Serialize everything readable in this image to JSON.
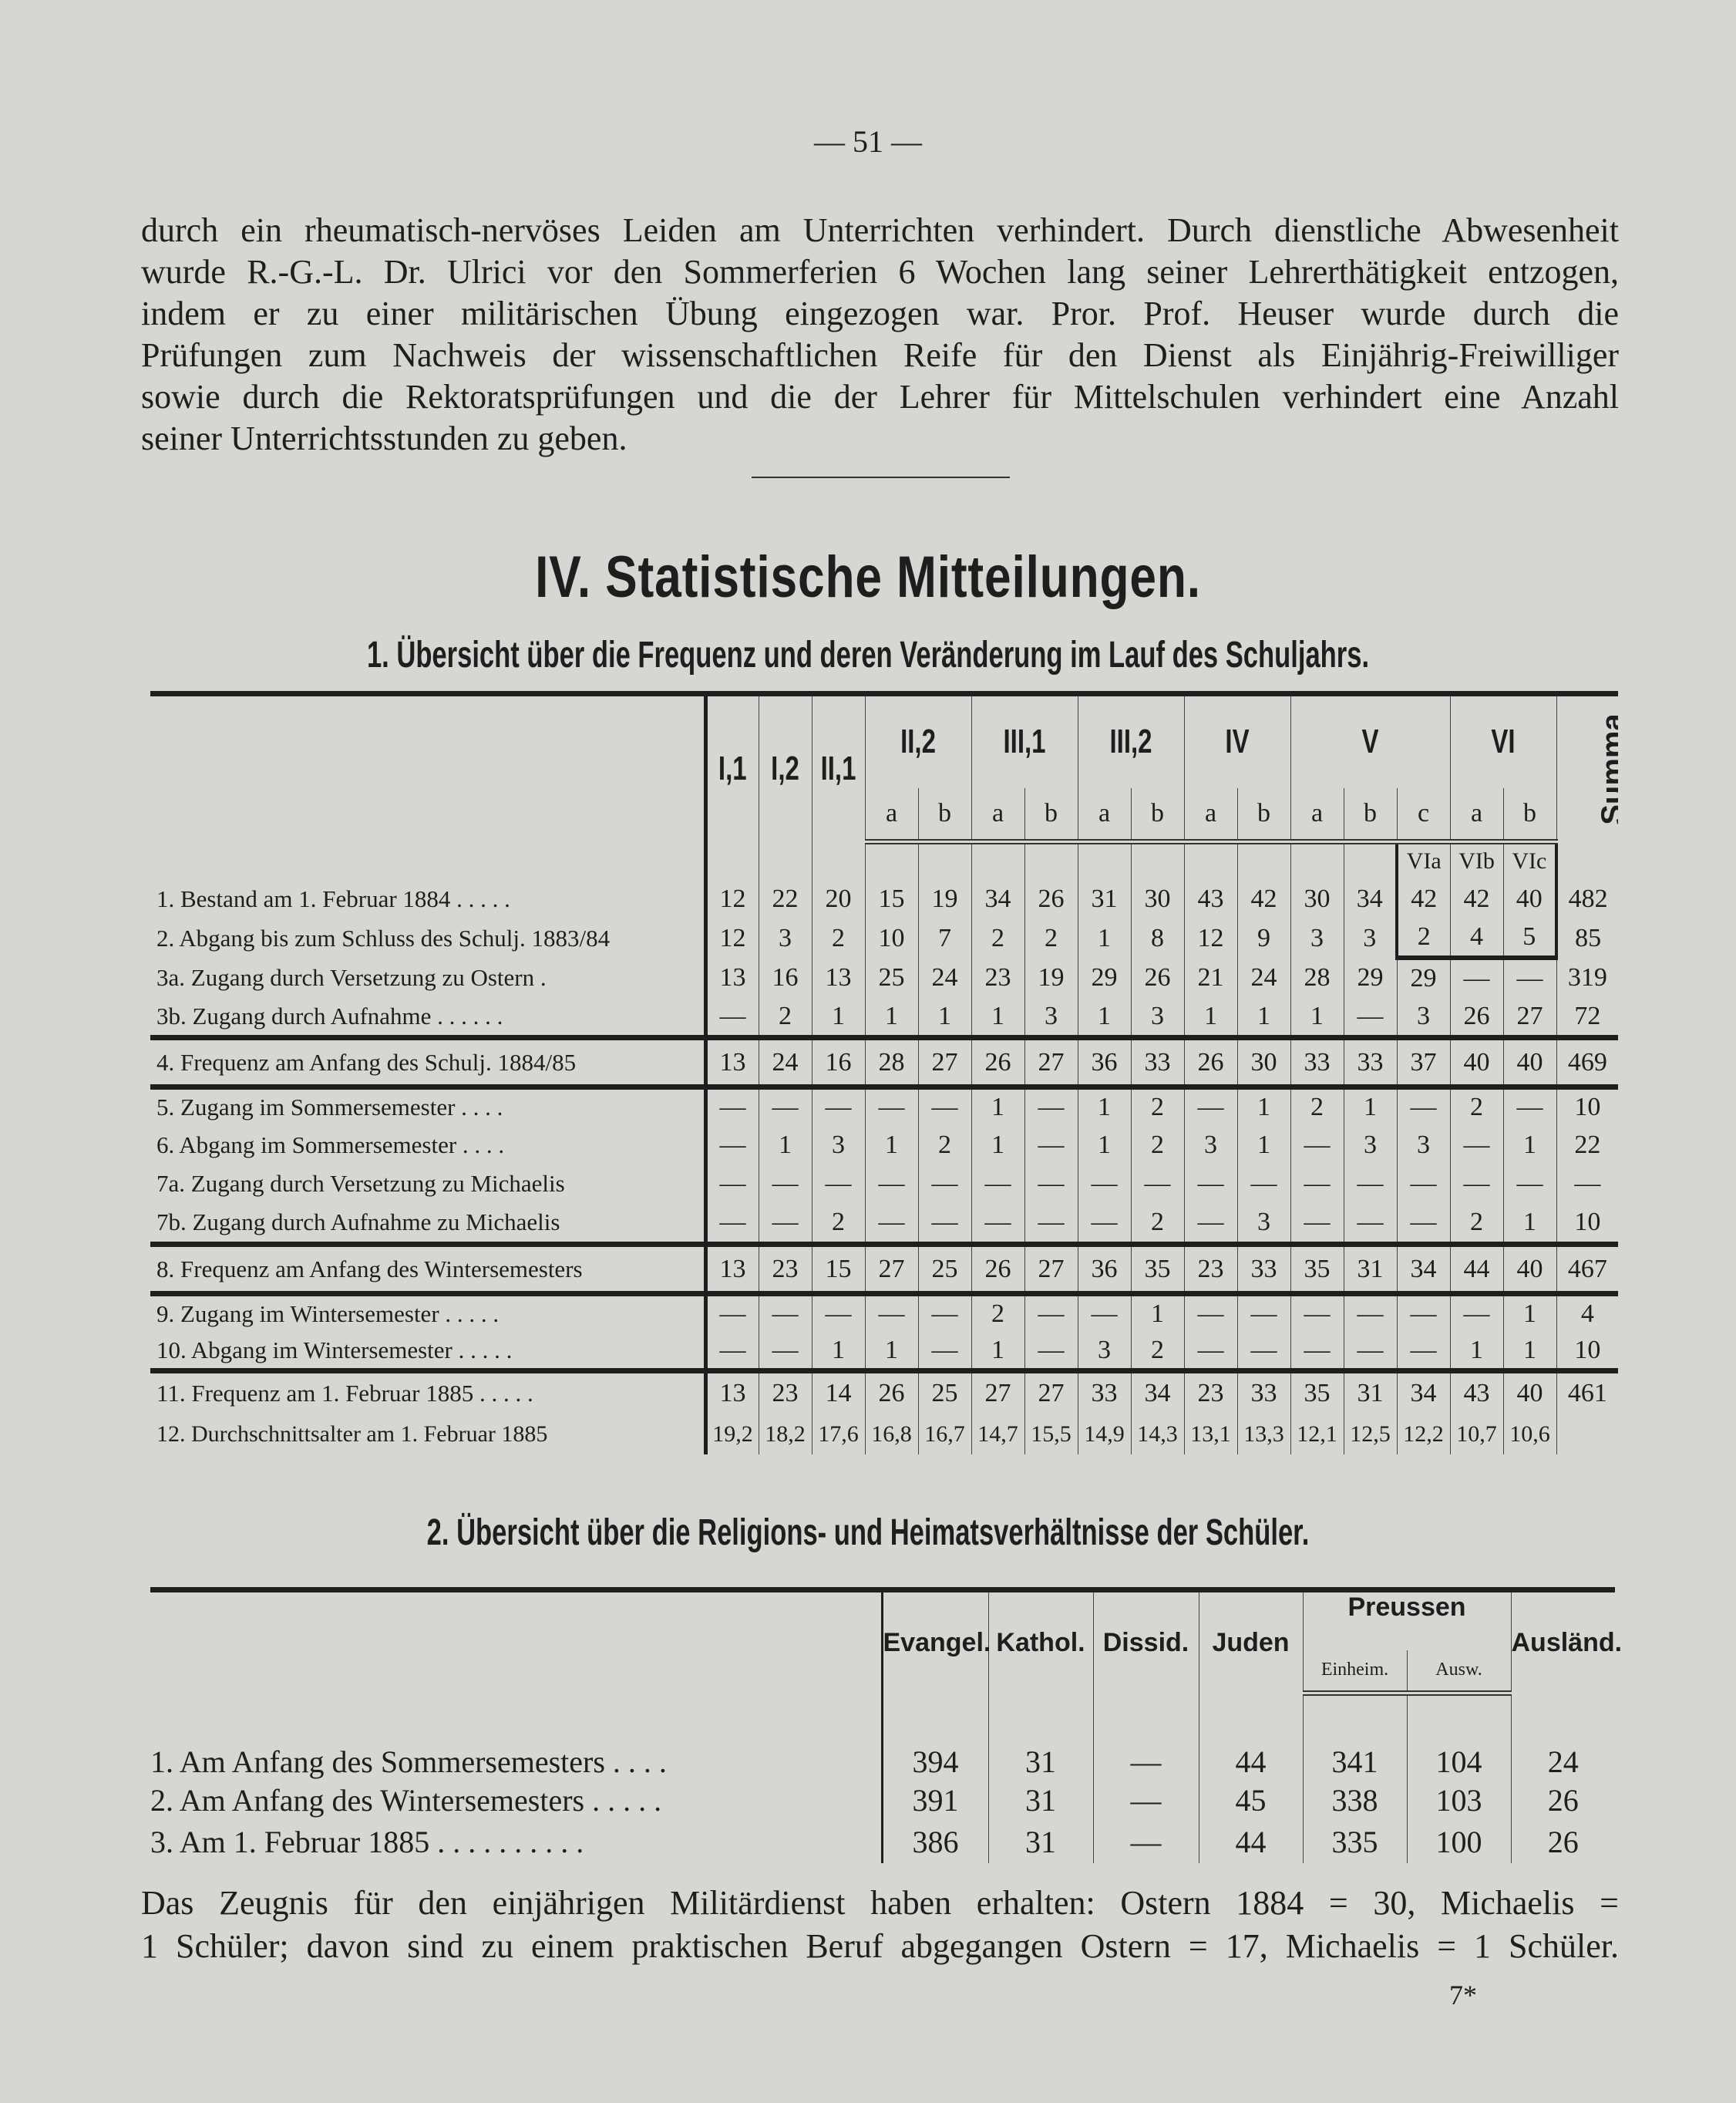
{
  "page_number": "— 51 —",
  "intro_lines": [
    "durch ein rheumatisch-nervöses Leiden am Unterrichten verhindert. Durch dienstliche Abwesenheit",
    "wurde R.-G.-L. Dr. Ulrici vor den Sommerferien 6 Wochen lang seiner Lehrerthätigkeit entzogen,",
    "indem er zu einer militärischen Übung eingezogen war. Pror. Prof. Heuser wurde durch die",
    "Prüfungen zum Nachweis der wissenschaftlichen Reife für den Dienst als Einjährig-Freiwilliger",
    "sowie durch die Rektoratsprüfungen und die der Lehrer für Mittelschulen verhindert eine Anzahl",
    "seiner Unterrichtsstunden zu geben."
  ],
  "heading": "IV. Statistische Mitteilungen.",
  "table1": {
    "title": "1. Übersicht über die Frequenz und deren Veränderung im Lauf des Schuljahrs.",
    "groups": [
      {
        "label": "I,1",
        "subs": [
          ""
        ]
      },
      {
        "label": "I,2",
        "subs": [
          ""
        ]
      },
      {
        "label": "II,1",
        "subs": [
          ""
        ]
      },
      {
        "label": "II,2",
        "subs": [
          "a",
          "b"
        ]
      },
      {
        "label": "III,1",
        "subs": [
          "a",
          "b"
        ]
      },
      {
        "label": "III,2",
        "subs": [
          "a",
          "b"
        ]
      },
      {
        "label": "IV",
        "subs": [
          "a",
          "b"
        ]
      },
      {
        "label": "V",
        "subs": [
          "a",
          "b",
          "c"
        ]
      },
      {
        "label": "VI",
        "subs": [
          "a",
          "b"
        ]
      }
    ],
    "summa_label": "Summa",
    "vi_box_labels": [
      "VIa",
      "VIb",
      "VIc"
    ],
    "rows": [
      {
        "label": "1. Bestand am 1. Februar 1884 . . . . .",
        "values": [
          "12",
          "22",
          "20",
          "15",
          "19",
          "34",
          "26",
          "31",
          "30",
          "43",
          "42",
          "30",
          "34",
          "42",
          "42",
          "40",
          "482"
        ]
      },
      {
        "label": "2. Abgang bis zum Schluss des Schulj. 1883/84",
        "values": [
          "12",
          "3",
          "2",
          "10",
          "7",
          "2",
          "2",
          "1",
          "8",
          "12",
          "9",
          "3",
          "3",
          "2",
          "4",
          "5",
          "85"
        ]
      },
      {
        "label": "3a. Zugang durch Versetzung zu Ostern .",
        "values": [
          "13",
          "16",
          "13",
          "25",
          "24",
          "23",
          "19",
          "29",
          "26",
          "21",
          "24",
          "28",
          "29",
          "29",
          "—",
          "—",
          "319"
        ]
      },
      {
        "label": "3b. Zugang durch Aufnahme . . . . . .",
        "values": [
          "—",
          "2",
          "1",
          "1",
          "1",
          "1",
          "3",
          "1",
          "3",
          "1",
          "1",
          "1",
          "—",
          "3",
          "26",
          "27",
          "72"
        ]
      },
      {
        "label": "4. Frequenz am Anfang des Schulj. 1884/85",
        "values": [
          "13",
          "24",
          "16",
          "28",
          "27",
          "26",
          "27",
          "36",
          "33",
          "26",
          "30",
          "33",
          "33",
          "37",
          "40",
          "40",
          "469"
        ]
      },
      {
        "label": "5. Zugang im Sommersemester . . . .",
        "values": [
          "—",
          "—",
          "—",
          "—",
          "—",
          "1",
          "—",
          "1",
          "2",
          "—",
          "1",
          "2",
          "1",
          "—",
          "2",
          "—",
          "10"
        ]
      },
      {
        "label": "6. Abgang im Sommersemester . . . .",
        "values": [
          "—",
          "1",
          "3",
          "1",
          "2",
          "1",
          "—",
          "1",
          "2",
          "3",
          "1",
          "—",
          "3",
          "3",
          "—",
          "1",
          "22"
        ]
      },
      {
        "label": "7a. Zugang durch Versetzung zu Michaelis",
        "values": [
          "—",
          "—",
          "—",
          "—",
          "—",
          "—",
          "—",
          "—",
          "—",
          "—",
          "—",
          "—",
          "—",
          "—",
          "—",
          "—",
          "—"
        ]
      },
      {
        "label": "7b. Zugang durch Aufnahme zu Michaelis",
        "values": [
          "—",
          "—",
          "2",
          "—",
          "—",
          "—",
          "—",
          "—",
          "2",
          "—",
          "3",
          "—",
          "—",
          "—",
          "2",
          "1",
          "10"
        ]
      },
      {
        "label": "8. Frequenz am Anfang des Wintersemesters",
        "values": [
          "13",
          "23",
          "15",
          "27",
          "25",
          "26",
          "27",
          "36",
          "35",
          "23",
          "33",
          "35",
          "31",
          "34",
          "44",
          "40",
          "467"
        ]
      },
      {
        "label": "9. Zugang im Wintersemester . . . . .",
        "values": [
          "—",
          "—",
          "—",
          "—",
          "—",
          "2",
          "—",
          "—",
          "1",
          "—",
          "—",
          "—",
          "—",
          "—",
          "—",
          "1",
          "4"
        ]
      },
      {
        "label": "10. Abgang im Wintersemester . . . . .",
        "values": [
          "—",
          "—",
          "1",
          "1",
          "—",
          "1",
          "—",
          "3",
          "2",
          "—",
          "—",
          "—",
          "—",
          "—",
          "1",
          "1",
          "10"
        ]
      },
      {
        "label": "11. Frequenz am 1. Februar 1885 . . . . .",
        "values": [
          "13",
          "23",
          "14",
          "26",
          "25",
          "27",
          "27",
          "33",
          "34",
          "23",
          "33",
          "35",
          "31",
          "34",
          "43",
          "40",
          "461"
        ]
      },
      {
        "label": "12. Durchschnittsalter am 1. Februar 1885",
        "values": [
          "19,2",
          "18,2",
          "17,6",
          "16,8",
          "16,7",
          "14,7",
          "15,5",
          "14,9",
          "14,3",
          "13,1",
          "13,3",
          "12,1",
          "12,5",
          "12,2",
          "10,7",
          "10,6",
          ""
        ]
      }
    ]
  },
  "table2": {
    "title": "2. Übersicht über die Religions- und Heimatsverhältnisse der Schüler.",
    "headers": {
      "evangel": "Evangel.",
      "kathol": "Kathol.",
      "dissid": "Dissid.",
      "juden": "Juden",
      "preussen": "Preussen",
      "einheim": "Einheim.",
      "ausw": "Ausw.",
      "auslaend": "Ausländ."
    },
    "rows": [
      {
        "label": "1. Am Anfang des Sommersemesters . . . .",
        "values": [
          "394",
          "31",
          "—",
          "44",
          "341",
          "104",
          "24"
        ]
      },
      {
        "label": "2. Am Anfang des Wintersemesters . . . . .",
        "values": [
          "391",
          "31",
          "—",
          "45",
          "338",
          "103",
          "26"
        ]
      },
      {
        "label": "3. Am 1. Februar 1885 . . . . . . . . . .",
        "values": [
          "386",
          "31",
          "—",
          "44",
          "335",
          "100",
          "26"
        ]
      }
    ]
  },
  "footer_lines": [
    "Das Zeugnis für den einjährigen Militärdienst haben erhalten: Ostern 1884 = 30, Michaelis =",
    "1 Schüler; davon sind zu einem praktischen Beruf abgegangen Ostern = 17, Michaelis = 1 Schüler."
  ],
  "signature_mark": "7*"
}
